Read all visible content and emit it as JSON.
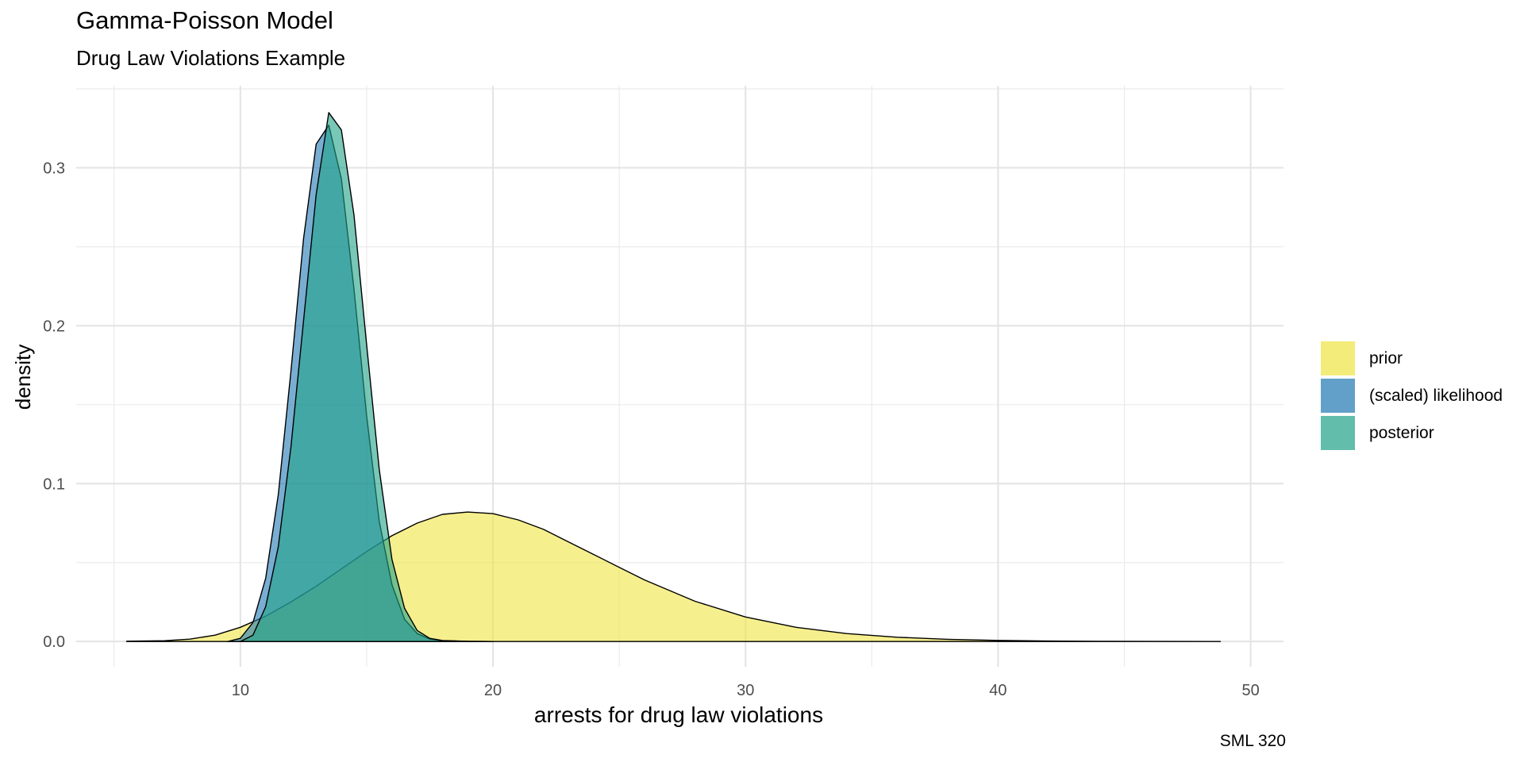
{
  "title": "Gamma-Poisson Model",
  "subtitle": "Drug Law Violations Example",
  "caption": "SML 320",
  "chart_data": {
    "type": "area",
    "title": "Gamma-Poisson Model",
    "subtitle": "Drug Law Violations Example",
    "xlabel": "arrests for drug law violations",
    "ylabel": "density",
    "xlim": [
      3.5,
      51.3
    ],
    "ylim": [
      -0.016,
      0.352
    ],
    "x_ticks": [
      10,
      20,
      30,
      40,
      50
    ],
    "y_ticks": [
      0.0,
      0.1,
      0.2,
      0.3
    ],
    "y_tick_labels": [
      "0.0",
      "0.1",
      "0.2",
      "0.3"
    ],
    "grid": true,
    "legend_position": "right",
    "series": [
      {
        "name": "prior",
        "color": "#F0E442",
        "x": [
          5.5,
          7,
          8,
          9,
          10,
          11,
          12,
          13,
          14,
          15,
          16,
          17,
          18,
          19,
          20,
          21,
          22,
          23,
          24,
          25,
          26,
          28,
          30,
          32,
          34,
          36,
          38,
          40,
          42,
          44,
          46,
          48.8
        ],
        "y": [
          0.0002,
          0.0005,
          0.0015,
          0.004,
          0.009,
          0.016,
          0.025,
          0.035,
          0.046,
          0.057,
          0.067,
          0.075,
          0.0805,
          0.082,
          0.081,
          0.077,
          0.071,
          0.063,
          0.055,
          0.047,
          0.039,
          0.0255,
          0.0155,
          0.009,
          0.005,
          0.0027,
          0.0014,
          0.0007,
          0.0003,
          0.00015,
          5e-05,
          0.0
        ]
      },
      {
        "name": "(scaled) likelihood",
        "color": "#1F78B4",
        "x": [
          9.5,
          10,
          10.5,
          11,
          11.5,
          12,
          12.5,
          13,
          13.5,
          14,
          14.5,
          15,
          15.5,
          16,
          16.5,
          17,
          17.5,
          18,
          19,
          20
        ],
        "y": [
          0.0,
          0.002,
          0.012,
          0.04,
          0.093,
          0.171,
          0.255,
          0.315,
          0.327,
          0.293,
          0.223,
          0.143,
          0.076,
          0.036,
          0.014,
          0.005,
          0.0015,
          0.0005,
          0.0001,
          0.0
        ]
      },
      {
        "name": "posterior",
        "color": "#1FA187",
        "x": [
          10,
          10.5,
          11,
          11.5,
          12,
          12.5,
          13,
          13.5,
          14,
          14.5,
          15,
          15.5,
          16,
          16.5,
          17,
          17.5,
          18,
          19,
          20
        ],
        "y": [
          0.0,
          0.004,
          0.022,
          0.06,
          0.123,
          0.203,
          0.283,
          0.335,
          0.324,
          0.27,
          0.188,
          0.109,
          0.052,
          0.021,
          0.007,
          0.002,
          0.0006,
          0.0001,
          0.0
        ]
      }
    ]
  }
}
